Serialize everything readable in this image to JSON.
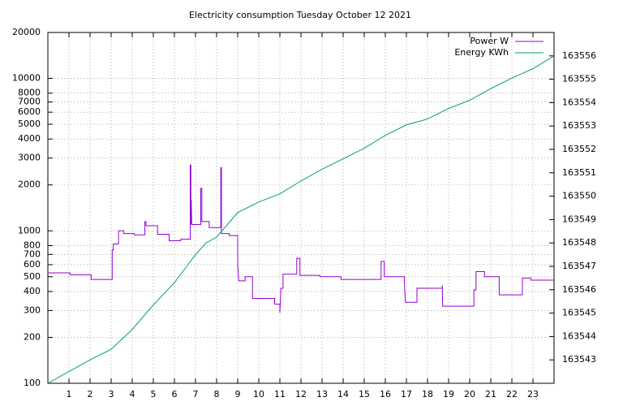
{
  "chart_data": {
    "type": "line",
    "title": "Electricity consumption Tuesday October 12 2021",
    "xlim": [
      0,
      24
    ],
    "xticks": [
      1,
      2,
      3,
      4,
      5,
      6,
      7,
      8,
      9,
      10,
      11,
      12,
      13,
      14,
      15,
      16,
      17,
      18,
      19,
      20,
      21,
      22,
      23
    ],
    "ylim": [
      100,
      20000
    ],
    "ylog": true,
    "yticks": [
      100,
      200,
      300,
      400,
      500,
      600,
      700,
      800,
      1000,
      2000,
      3000,
      4000,
      5000,
      6000,
      7000,
      8000,
      10000,
      20000
    ],
    "y2lim": [
      163542,
      163557
    ],
    "y2ticks": [
      163543,
      163544,
      163545,
      163546,
      163547,
      163548,
      163549,
      163550,
      163551,
      163552,
      163553,
      163554,
      163555,
      163556
    ],
    "grid": true,
    "legend": "top-right",
    "series": [
      {
        "name": "Power W",
        "color": "#9400d3",
        "x": [
          0,
          1.05,
          1.05,
          2.05,
          2.05,
          3.05,
          3.05,
          3.1,
          3.1,
          3.35,
          3.35,
          3.6,
          3.6,
          4.1,
          4.1,
          4.6,
          4.6,
          4.65,
          4.65,
          5.2,
          5.2,
          5.75,
          5.75,
          6.3,
          6.3,
          6.75,
          6.75,
          6.78,
          6.78,
          6.8,
          6.82,
          7.25,
          7.25,
          7.3,
          7.3,
          7.65,
          7.65,
          8.2,
          8.2,
          8.23,
          8.23,
          8.6,
          8.6,
          9.0,
          9.0,
          9.05,
          9.35,
          9.35,
          9.7,
          9.7,
          10.75,
          10.75,
          11,
          11,
          11.05,
          11.15,
          11.15,
          11.8,
          11.8,
          11.95,
          11.95,
          12.9,
          12.9,
          13.9,
          13.9,
          15.8,
          15.8,
          15.95,
          15.95,
          16.9,
          16.9,
          16.95,
          17.5,
          17.5,
          18.7,
          18.7,
          18.72,
          20.2,
          20.2,
          20.3,
          20.3,
          20.7,
          20.7,
          21.4,
          21.4,
          22.5,
          22.5,
          22.9,
          22.9,
          24
        ],
        "values": [
          530,
          530,
          515,
          515,
          480,
          480,
          750,
          750,
          820,
          820,
          1000,
          1000,
          960,
          960,
          940,
          940,
          1150,
          1150,
          1080,
          1080,
          950,
          950,
          860,
          860,
          880,
          880,
          2700,
          2700,
          1100,
          1600,
          1100,
          1100,
          1900,
          1900,
          1150,
          1150,
          1050,
          1050,
          2600,
          2600,
          960,
          960,
          930,
          930,
          600,
          470,
          470,
          500,
          500,
          360,
          360,
          330,
          330,
          290,
          420,
          420,
          520,
          520,
          660,
          660,
          510,
          510,
          500,
          500,
          480,
          480,
          630,
          630,
          500,
          500,
          470,
          340,
          340,
          420,
          420,
          440,
          320,
          320,
          410,
          410,
          540,
          540,
          500,
          500,
          380,
          380,
          490,
          490,
          475,
          475
        ]
      },
      {
        "name": "Energy KWh",
        "color": "#009e73",
        "axis": "y2",
        "x": [
          0,
          1,
          2,
          3,
          4,
          5,
          6,
          6.5,
          7,
          7.5,
          8,
          9,
          10,
          11,
          12,
          13,
          14,
          15,
          16,
          17,
          18,
          19,
          20,
          21,
          22,
          23,
          24
        ],
        "values": [
          163542.0,
          163542.5,
          163543.0,
          163543.45,
          163544.3,
          163545.35,
          163546.3,
          163546.9,
          163547.5,
          163548.0,
          163548.25,
          163549.3,
          163549.75,
          163550.1,
          163550.65,
          163551.15,
          163551.6,
          163552.05,
          163552.6,
          163553.05,
          163553.3,
          163553.75,
          163554.1,
          163554.6,
          163555.05,
          163555.45,
          163556.0
        ]
      }
    ]
  }
}
